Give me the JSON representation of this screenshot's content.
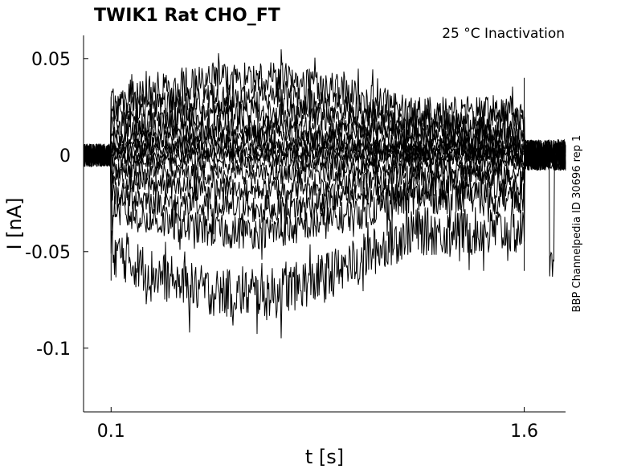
{
  "chart_data": {
    "type": "line",
    "title": "TWIK1  Rat  CHO_FT",
    "subtitle": "25 °C  Inactivation",
    "side_label": "BBP Channelpedia ID 30696 rep 1",
    "xlabel": "t [s]",
    "ylabel": "I [nA]",
    "xlim": [
      0.0,
      1.75
    ],
    "ylim": [
      -0.133,
      0.062
    ],
    "x_ticks": [
      0.1,
      1.6
    ],
    "x_tick_labels": [
      "0.1",
      "1.6"
    ],
    "y_ticks": [
      0.05,
      0,
      -0.05,
      -0.1
    ],
    "y_tick_labels": [
      "0.05",
      "0",
      "-0.05",
      "-0.1"
    ],
    "grid": false,
    "line_color": "#000000",
    "pulse": {
      "start": 0.1,
      "end": 1.6
    },
    "series_levels": [
      0.04,
      0.03,
      0.022,
      0.015,
      0.01,
      0.006,
      0.003,
      0.0,
      -0.004,
      -0.01,
      -0.018,
      -0.028,
      -0.04,
      -0.072
    ]
  }
}
